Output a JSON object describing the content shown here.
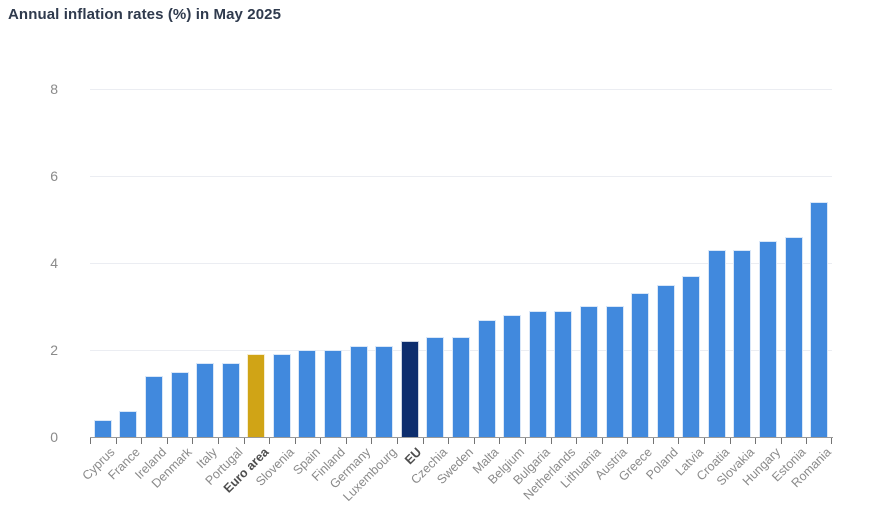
{
  "title": "Annual inflation rates (%) in May 2025",
  "chart_data": {
    "type": "bar",
    "title": "Annual inflation rates (%) in May 2025",
    "categories": [
      "Cyprus",
      "France",
      "Ireland",
      "Denmark",
      "Italy",
      "Portugal",
      "Euro area",
      "Slovenia",
      "Spain",
      "Finland",
      "Germany",
      "Luxembourg",
      "EU",
      "Czechia",
      "Sweden",
      "Malta",
      "Belgium",
      "Bulgaria",
      "Netherlands",
      "Lithuania",
      "Austria",
      "Greece",
      "Poland",
      "Latvia",
      "Croatia",
      "Slovakia",
      "Hungary",
      "Estonia",
      "Romania"
    ],
    "values": [
      0.4,
      0.6,
      1.4,
      1.5,
      1.7,
      1.7,
      1.9,
      1.9,
      2.0,
      2.0,
      2.1,
      2.1,
      2.2,
      2.3,
      2.3,
      2.7,
      2.8,
      2.9,
      2.9,
      3.0,
      3.0,
      3.3,
      3.5,
      3.7,
      4.3,
      4.3,
      4.5,
      4.6,
      5.4
    ],
    "bold_categories": [
      "Euro area",
      "EU"
    ],
    "bar_color": "#4189dd",
    "highlight_colors": {
      "Euro area": "#d0a416",
      "EU": "#0e2e6e"
    },
    "xlabel": "",
    "ylabel": "",
    "ylim": [
      0,
      8
    ],
    "yticks": [
      0,
      2,
      4,
      6,
      8
    ],
    "grid": true,
    "legend": false,
    "x_label_rotation_deg": -45
  },
  "colors": {
    "title_text": "#2f3a4d",
    "axis_label_text": "#8a8a8a",
    "bold_axis_label_text": "#4d4d4d",
    "gridline": "#ebedf2",
    "axis_line": "#9a9a9a",
    "bar_default": "#4189dd",
    "bar_euro_area": "#d0a416",
    "bar_eu": "#0e2e6e"
  }
}
